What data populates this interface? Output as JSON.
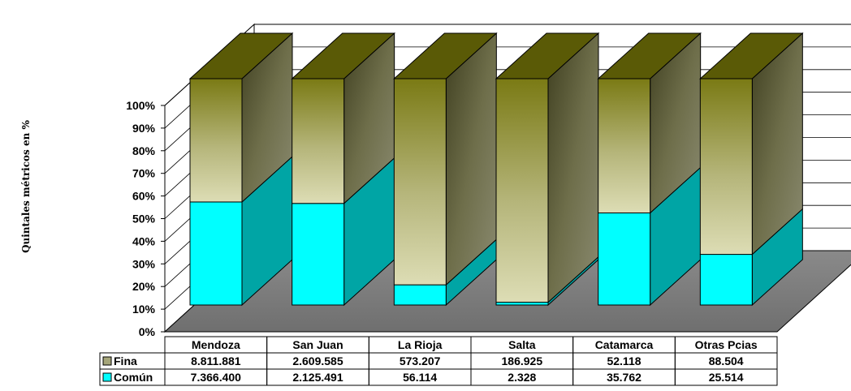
{
  "chart_data": {
    "type": "bar",
    "stacked": true,
    "stacking": "percent",
    "three_d": true,
    "ylabel": "Quintales métricos  en %",
    "ylim": [
      0,
      100
    ],
    "yticks": [
      "0%",
      "10%",
      "20%",
      "30%",
      "40%",
      "50%",
      "60%",
      "70%",
      "80%",
      "90%",
      "100%"
    ],
    "categories": [
      "Mendoza",
      "San Juan",
      "La Rioja",
      "Salta",
      "Catamarca",
      "Otras Pcias"
    ],
    "series": [
      {
        "name": "Común",
        "values": [
          7366400,
          2125491,
          56114,
          2328,
          35762,
          25514
        ],
        "labels": [
          "7.366.400",
          "2.125.491",
          "56.114",
          "2.328",
          "35.762",
          "25.514"
        ],
        "color": "#00ffff",
        "side_color": "#00a5a5"
      },
      {
        "name": "Fina",
        "values": [
          8811881,
          2609585,
          573207,
          186925,
          52118,
          88504
        ],
        "labels": [
          "8.811.881",
          "2.609.585",
          "573.207",
          "186.925",
          "52.118",
          "88.504"
        ],
        "color": "#7d7d1a",
        "side_color": "#5a5a2a"
      }
    ],
    "data_table": true,
    "grid": true,
    "floor_color": "#808080"
  }
}
